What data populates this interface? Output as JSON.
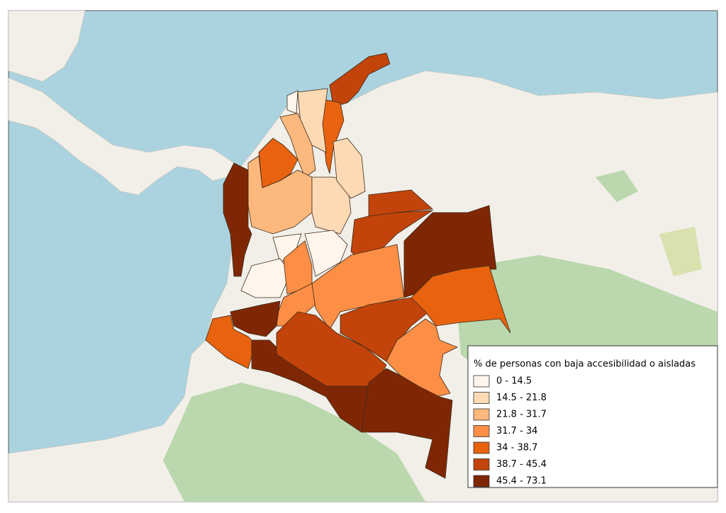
{
  "legend": {
    "title": "% de personas con baja accesibilidad o aisladas",
    "items": [
      {
        "label": "0 - 14.5",
        "color": "#fff5eb"
      },
      {
        "label": "14.5 - 21.8",
        "color": "#fdd9b4"
      },
      {
        "label": "21.8 - 31.7",
        "color": "#fdb97d"
      },
      {
        "label": "31.7 - 34",
        "color": "#fd8e45"
      },
      {
        "label": "34 - 38.7",
        "color": "#e8620f"
      },
      {
        "label": "38.7 - 45.4",
        "color": "#c2440a"
      },
      {
        "label": "45.4 - 73.1",
        "color": "#7f2704"
      }
    ]
  }
}
